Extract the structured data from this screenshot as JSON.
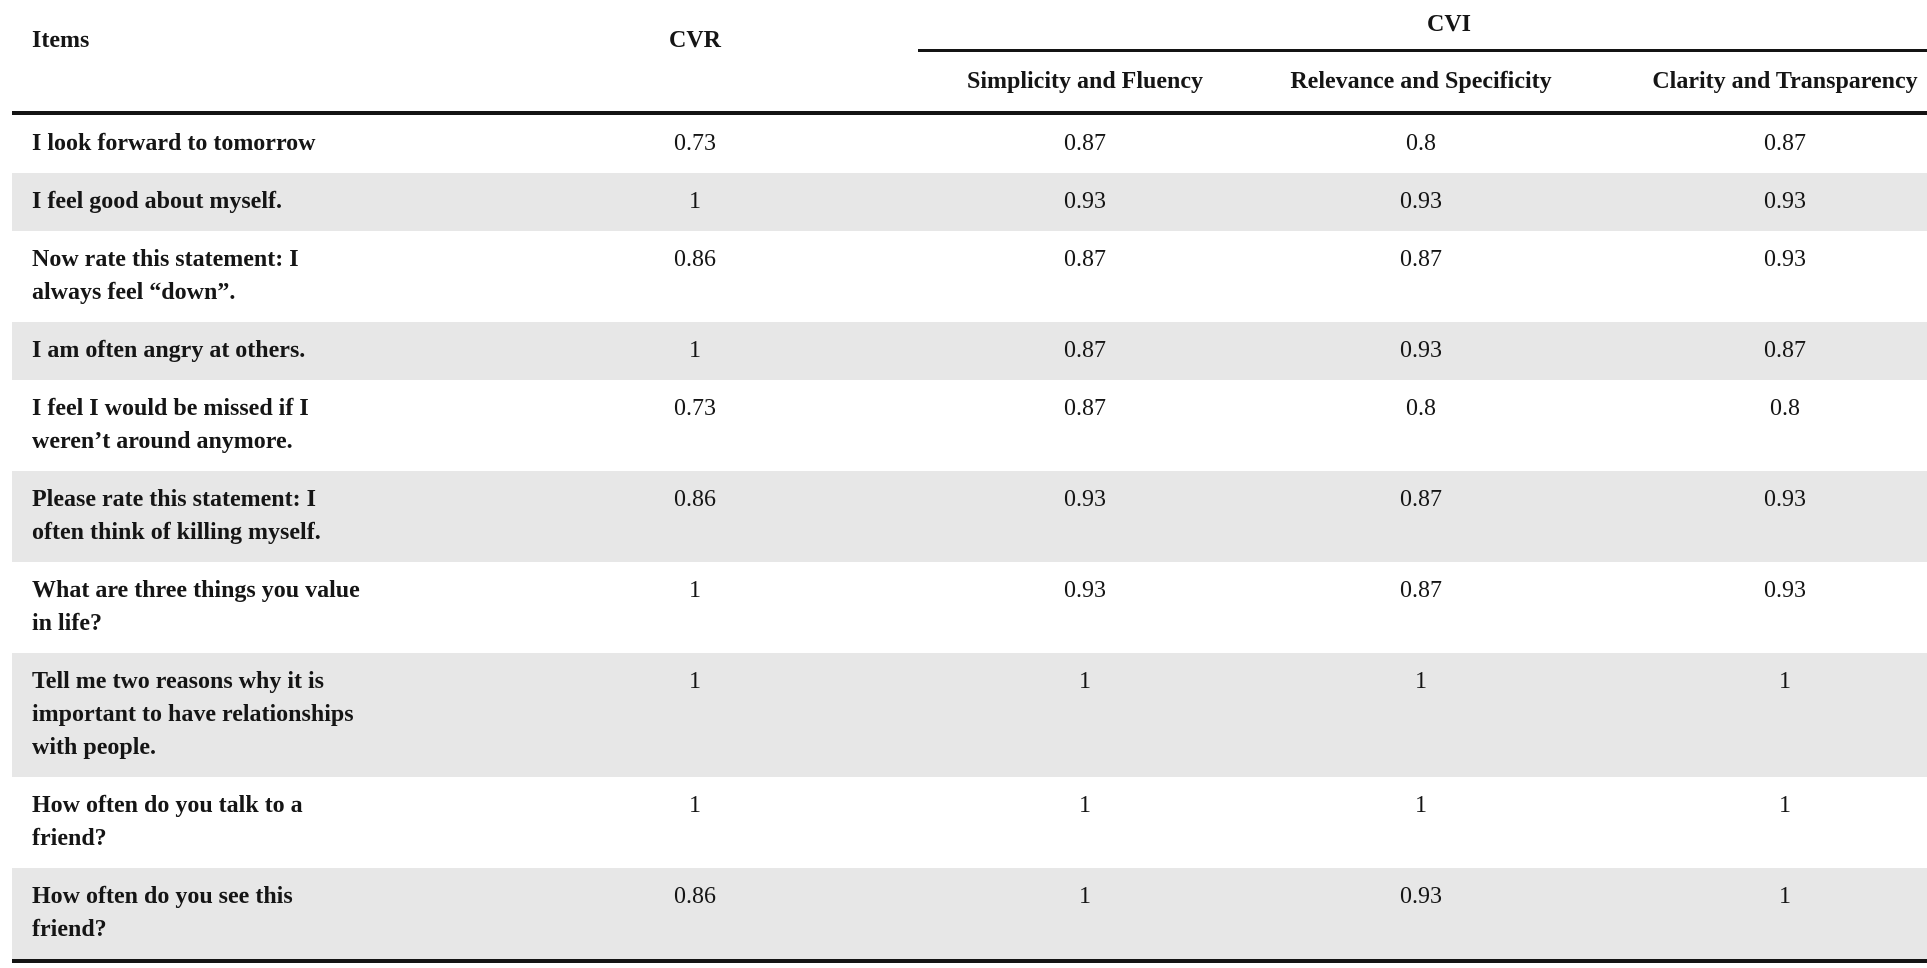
{
  "header": {
    "items": "Items",
    "cvr": "CVR",
    "cvi": "CVI",
    "cvi_sub": [
      "Simplicity and Fluency",
      "Relevance and Specificity",
      "Clarity and Transparency"
    ]
  },
  "rows": [
    {
      "item": "I look forward to tomorrow",
      "cvr": "0.73",
      "simplicity": "0.87",
      "relevance": "0.8",
      "clarity": "0.87"
    },
    {
      "item": "I feel good about myself.",
      "cvr": "1",
      "simplicity": "0.93",
      "relevance": "0.93",
      "clarity": "0.93"
    },
    {
      "item": "Now rate this statement: I\nalways feel “down”.",
      "cvr": "0.86",
      "simplicity": "0.87",
      "relevance": "0.87",
      "clarity": "0.93"
    },
    {
      "item": "I am often angry at others.",
      "cvr": "1",
      "simplicity": "0.87",
      "relevance": "0.93",
      "clarity": "0.87"
    },
    {
      "item": "I feel I would be missed if I\nweren’t around anymore.",
      "cvr": "0.73",
      "simplicity": "0.87",
      "relevance": "0.8",
      "clarity": "0.8"
    },
    {
      "item": "Please rate this statement: I\noften think of killing myself.",
      "cvr": "0.86",
      "simplicity": "0.93",
      "relevance": "0.87",
      "clarity": "0.93"
    },
    {
      "item": "What are three things you value\nin life?",
      "cvr": "1",
      "simplicity": "0.93",
      "relevance": "0.87",
      "clarity": "0.93"
    },
    {
      "item": "Tell me two reasons why it is\nimportant to have relationships\nwith people.",
      "cvr": "1",
      "simplicity": "1",
      "relevance": "1",
      "clarity": "1"
    },
    {
      "item": "How often do you talk to a\nfriend?",
      "cvr": "1",
      "simplicity": "1",
      "relevance": "1",
      "clarity": "1"
    },
    {
      "item": "How often do you see this\nfriend?",
      "cvr": "0.86",
      "simplicity": "1",
      "relevance": "0.93",
      "clarity": "1"
    }
  ],
  "colors": {
    "row_shading": "#e7e7e7",
    "text": "#151515",
    "rule": "#141414",
    "background": "#ffffff"
  }
}
